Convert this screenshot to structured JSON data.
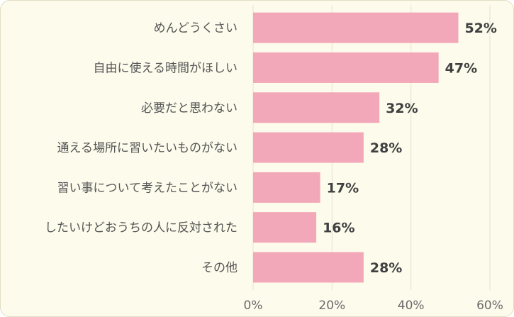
{
  "chart_data": {
    "type": "bar",
    "orientation": "horizontal",
    "categories": [
      "めんどうくさい",
      "自由に使える時間がほしい",
      "必要だと思わない",
      "通える場所に習いたいものがない",
      "習い事について考えたことがない",
      "したいけどおうちの人に反対された",
      "その他"
    ],
    "values": [
      52,
      47,
      32,
      28,
      17,
      16,
      28
    ],
    "value_labels": [
      "52%",
      "47%",
      "32%",
      "28%",
      "17%",
      "16%",
      "28%"
    ],
    "x_ticks": [
      "0%",
      "20%",
      "40%",
      "60%"
    ],
    "xlim": [
      0,
      60
    ],
    "grid": true,
    "bar_color": "#f2a8b8",
    "background_color": "#fdfbec"
  }
}
